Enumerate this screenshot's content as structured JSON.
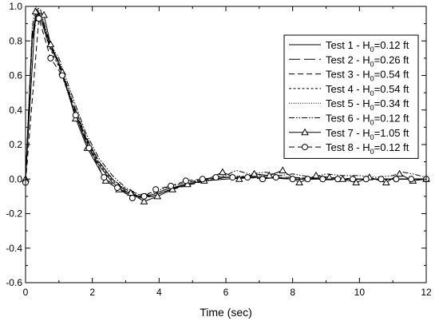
{
  "chart_data": {
    "type": "line",
    "title": "",
    "xlabel": "Time (sec)",
    "ylabel": "",
    "xlim": [
      0,
      12
    ],
    "ylim": [
      -0.6,
      1.0
    ],
    "xticks": [
      0,
      2,
      4,
      6,
      8,
      10,
      12
    ],
    "yticks": [
      -0.6,
      -0.4,
      -0.2,
      0.0,
      0.2,
      0.4,
      0.6,
      0.8,
      1.0
    ],
    "xtick_labels": [
      "0",
      "2",
      "4",
      "6",
      "8",
      "10",
      "12"
    ],
    "ytick_labels": [
      "-0.6",
      "-0.4",
      "-0.2",
      "0.0",
      "0.2",
      "0.4",
      "0.6",
      "0.8",
      "1.0"
    ],
    "grid": false,
    "legend_position": "top-right",
    "series": [
      {
        "name": "Test 1 - H0=0.12 ft",
        "legend": {
          "prefix": "Test 1 - H",
          "sub": "0",
          "suffix": "=0.12 ft"
        },
        "style": "solid",
        "marker": "none",
        "x": [
          0,
          0.2,
          0.35,
          0.5,
          0.7,
          1.0,
          1.4,
          1.8,
          2.2,
          2.6,
          3.0,
          3.4,
          3.8,
          4.2,
          4.8,
          5.4,
          6.0,
          7.0,
          8.0,
          9.0,
          10.0,
          11.0,
          12.0
        ],
        "y": [
          0.0,
          0.82,
          0.96,
          0.9,
          0.78,
          0.67,
          0.42,
          0.22,
          0.08,
          -0.02,
          -0.08,
          -0.1,
          -0.09,
          -0.06,
          -0.03,
          -0.01,
          0.0,
          0.01,
          0.0,
          0.0,
          0.0,
          0.0,
          0.0
        ]
      },
      {
        "name": "Test 2 - H0=0.26 ft",
        "legend": {
          "prefix": "Test 2 - H",
          "sub": "0",
          "suffix": "=0.26 ft"
        },
        "style": "longdash",
        "marker": "none",
        "x": [
          0,
          0.2,
          0.35,
          0.5,
          0.7,
          1.0,
          1.4,
          1.8,
          2.2,
          2.6,
          3.0,
          3.4,
          3.8,
          4.2,
          4.8,
          5.4,
          6.0,
          7.0,
          8.0,
          9.0,
          10.0,
          11.0,
          12.0
        ],
        "y": [
          0.0,
          0.85,
          0.98,
          0.92,
          0.8,
          0.66,
          0.44,
          0.24,
          0.1,
          0.0,
          -0.07,
          -0.1,
          -0.1,
          -0.07,
          -0.03,
          -0.01,
          0.01,
          0.01,
          0.0,
          0.0,
          0.0,
          0.0,
          0.0
        ]
      },
      {
        "name": "Test 3 - H0=0.54 ft",
        "legend": {
          "prefix": "Test 3 - H",
          "sub": "0",
          "suffix": "=0.54 ft"
        },
        "style": "dash",
        "marker": "none",
        "x": [
          0,
          0.2,
          0.35,
          0.5,
          0.7,
          1.0,
          1.4,
          1.8,
          2.2,
          2.6,
          3.0,
          3.4,
          3.8,
          4.2,
          4.8,
          5.4,
          6.0,
          7.0,
          8.0,
          9.0,
          10.0,
          11.0,
          12.0
        ],
        "y": [
          0.0,
          0.8,
          0.95,
          0.92,
          0.79,
          0.68,
          0.45,
          0.25,
          0.1,
          0.0,
          -0.06,
          -0.09,
          -0.1,
          -0.07,
          -0.04,
          -0.01,
          0.01,
          0.01,
          0.01,
          0.0,
          0.0,
          0.0,
          0.0
        ]
      },
      {
        "name": "Test 4 - H0=0.54 ft",
        "legend": {
          "prefix": "Test 4 - H",
          "sub": "0",
          "suffix": "=0.54 ft"
        },
        "style": "shortdash",
        "marker": "none",
        "x": [
          0,
          0.2,
          0.35,
          0.5,
          0.7,
          1.0,
          1.4,
          1.8,
          2.2,
          2.6,
          3.0,
          3.4,
          3.8,
          4.2,
          4.8,
          5.4,
          6.0,
          7.0,
          8.0,
          9.0,
          10.0,
          11.0,
          12.0
        ],
        "y": [
          0.0,
          0.83,
          0.97,
          0.9,
          0.77,
          0.65,
          0.43,
          0.23,
          0.09,
          -0.01,
          -0.07,
          -0.11,
          -0.1,
          -0.07,
          -0.03,
          0.0,
          0.01,
          0.02,
          0.0,
          0.01,
          0.0,
          0.0,
          0.0
        ]
      },
      {
        "name": "Test 5 - H0=0.34 ft",
        "legend": {
          "prefix": "Test 5 - H",
          "sub": "0",
          "suffix": "=0.34 ft"
        },
        "style": "dot",
        "marker": "none",
        "x": [
          0,
          0.2,
          0.35,
          0.5,
          0.7,
          1.0,
          1.4,
          1.8,
          2.2,
          2.6,
          3.0,
          3.4,
          3.8,
          4.2,
          4.8,
          5.4,
          6.0,
          7.0,
          8.0,
          9.0,
          10.0,
          11.0,
          12.0
        ],
        "y": [
          0.0,
          0.84,
          0.99,
          0.93,
          0.8,
          0.68,
          0.46,
          0.25,
          0.1,
          0.0,
          -0.06,
          -0.1,
          -0.09,
          -0.06,
          -0.03,
          0.0,
          0.02,
          0.01,
          0.01,
          0.0,
          0.0,
          0.0,
          0.0
        ]
      },
      {
        "name": "Test 6 - H0=0.12 ft",
        "legend": {
          "prefix": "Test 6 - H",
          "sub": "0",
          "suffix": "=0.12 ft"
        },
        "style": "dashdotdot",
        "marker": "none",
        "x": [
          0,
          0.2,
          0.3,
          0.45,
          0.6,
          0.8,
          1.0,
          1.4,
          1.8,
          2.2,
          2.6,
          3.0,
          3.4,
          3.8,
          4.2,
          4.8,
          5.4,
          6.0,
          6.3,
          6.7,
          7.2,
          7.6,
          8.0,
          8.6,
          9.0,
          9.5,
          10.0,
          10.5,
          11.0,
          11.3,
          11.6,
          12.0
        ],
        "y": [
          0.0,
          0.88,
          1.0,
          0.98,
          0.87,
          0.76,
          0.7,
          0.48,
          0.27,
          0.12,
          0.02,
          -0.05,
          -0.09,
          -0.08,
          -0.05,
          -0.02,
          0.0,
          0.02,
          0.05,
          0.03,
          0.04,
          0.02,
          0.03,
          0.01,
          0.03,
          0.02,
          0.02,
          0.01,
          0.02,
          0.04,
          0.03,
          0.01
        ]
      },
      {
        "name": "Test 7 - H0=1.05 ft",
        "legend": {
          "prefix": "Test 7 - H",
          "sub": "0",
          "suffix": "=1.05 ft"
        },
        "style": "solid",
        "marker": "triangle",
        "x": [
          0,
          0.3,
          0.55,
          0.75,
          1.1,
          1.5,
          1.85,
          2.4,
          2.8,
          3.15,
          3.55,
          3.95,
          4.4,
          4.85,
          5.35,
          5.9,
          6.4,
          6.85,
          7.3,
          7.7,
          8.2,
          8.7,
          9.1,
          9.5,
          9.9,
          10.3,
          10.8,
          11.2,
          11.6,
          12.0
        ],
        "y": [
          0.0,
          0.97,
          0.95,
          0.78,
          0.62,
          0.35,
          0.18,
          -0.01,
          -0.06,
          -0.08,
          -0.13,
          -0.1,
          -0.06,
          -0.03,
          -0.01,
          0.04,
          0.0,
          0.03,
          0.02,
          0.05,
          -0.02,
          0.02,
          0.01,
          0.0,
          -0.02,
          0.01,
          -0.02,
          0.03,
          -0.01,
          0.0
        ]
      },
      {
        "name": "Test 8 - H0=0.12 ft",
        "legend": {
          "prefix": "Test 8 - H",
          "sub": "0",
          "suffix": "=0.12 ft"
        },
        "style": "dash",
        "marker": "circle",
        "x": [
          0,
          0.4,
          0.75,
          1.1,
          1.5,
          1.9,
          2.35,
          2.75,
          3.2,
          3.55,
          3.9,
          4.35,
          4.8,
          5.3,
          5.7,
          6.2,
          6.65,
          7.1,
          7.5,
          8.0,
          8.45,
          8.9,
          9.35,
          9.8,
          10.2,
          10.65,
          11.1,
          11.55,
          12.0
        ],
        "y": [
          -0.02,
          0.93,
          0.7,
          0.6,
          0.37,
          0.18,
          0.01,
          -0.05,
          -0.11,
          -0.1,
          -0.06,
          -0.04,
          -0.01,
          0.0,
          0.01,
          0.01,
          0.01,
          0.0,
          0.01,
          0.0,
          0.0,
          0.0,
          0.0,
          0.0,
          0.0,
          0.0,
          0.0,
          0.0,
          0.0
        ]
      }
    ]
  }
}
